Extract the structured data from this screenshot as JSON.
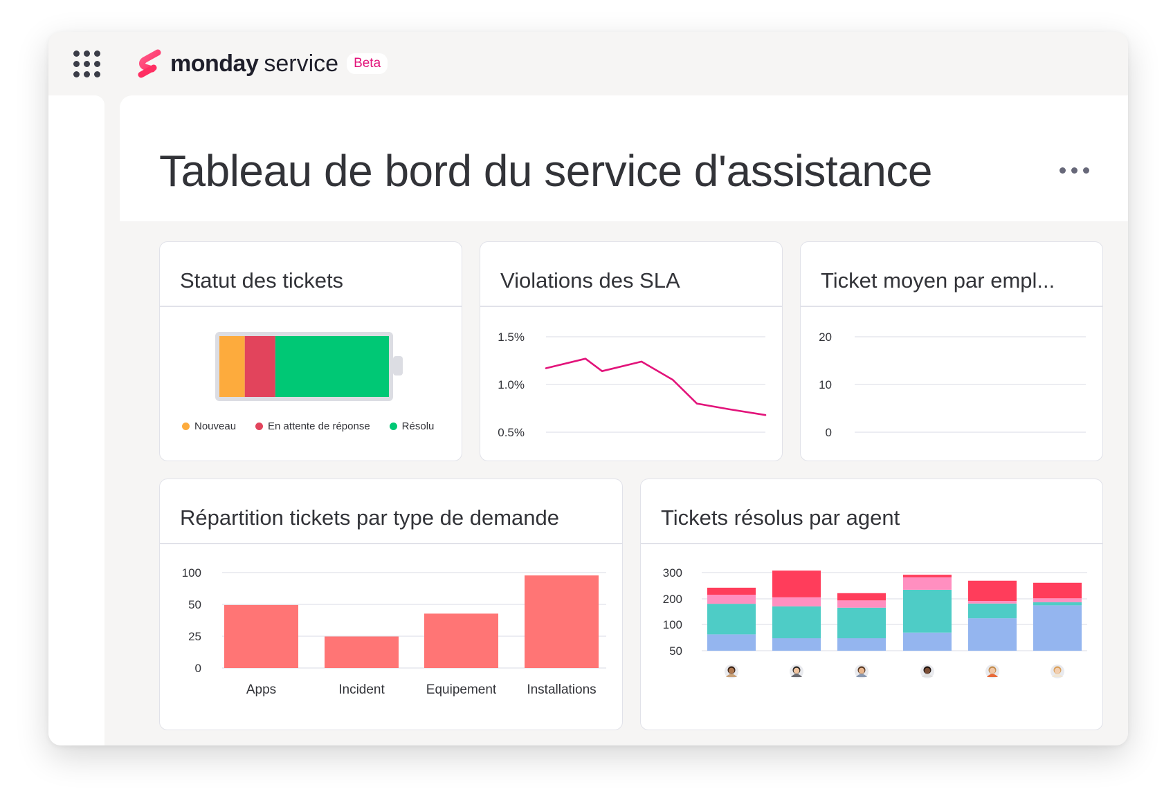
{
  "brand": {
    "name_bold": "monday",
    "name_light": "service",
    "badge": "Beta"
  },
  "page": {
    "title": "Tableau de bord du service d'assistance"
  },
  "icons": {
    "apps": "apps-grid-icon",
    "more": "more-horizontal-icon",
    "logo": "monday-service-logo"
  },
  "colors": {
    "accent": "#e2137a",
    "status_new": "#fdab3d",
    "status_waiting": "#e2445c",
    "status_resolved": "#00c875",
    "bar": "#ff7575",
    "sla_line": "#e2137a",
    "stack_blue": "#94b5ef",
    "stack_teal": "#4eccc6",
    "stack_pink": "#ff8fc0",
    "stack_red": "#ff3d5b"
  },
  "cards": {
    "status": {
      "title": "Statut des tickets"
    },
    "sla": {
      "title": "Violations des SLA"
    },
    "avg": {
      "title": "Ticket moyen par empl..."
    },
    "types": {
      "title": "Répartition tickets par type de demande"
    },
    "agents": {
      "title": "Tickets résolus par agent"
    }
  },
  "chart_data": [
    {
      "id": "ticket-status",
      "type": "bar",
      "title": "Statut des tickets",
      "orientation": "stacked-horizontal",
      "series": [
        {
          "name": "Nouveau",
          "value": 15,
          "color": "#fdab3d"
        },
        {
          "name": "En attente de réponse",
          "value": 18,
          "color": "#e2445c"
        },
        {
          "name": "Résolu",
          "value": 67,
          "color": "#00c875"
        }
      ],
      "legend": "bottom"
    },
    {
      "id": "sla-violations",
      "type": "line",
      "title": "Violations des SLA",
      "yticks": [
        "1.5%",
        "1.0%",
        "0.5%"
      ],
      "ylim": [
        0.5,
        1.5
      ],
      "x": [
        1,
        2,
        3,
        4,
        5,
        6,
        7,
        8
      ],
      "series": [
        {
          "values": [
            1.17,
            1.27,
            1.14,
            1.24,
            1.05,
            0.8,
            0.74,
            0.68
          ],
          "color": "#e2137a"
        }
      ],
      "grid": true
    },
    {
      "id": "avg-ticket-per-employee",
      "type": "line",
      "title": "Ticket moyen par empl...",
      "yticks": [
        "20",
        "10",
        "0"
      ],
      "ylim": [
        0,
        20
      ],
      "series": [],
      "grid": true
    },
    {
      "id": "tickets-by-request-type",
      "type": "bar",
      "title": "Répartition tickets par type de demande",
      "categories": [
        "Apps",
        "Incident",
        "Equipement",
        "Installations"
      ],
      "values": [
        66,
        33,
        57,
        97
      ],
      "yticks": [
        "100",
        "50",
        "25",
        "0"
      ],
      "ylim": [
        0,
        100
      ],
      "color": "#ff7575",
      "grid": true
    },
    {
      "id": "tickets-resolved-by-agent",
      "type": "bar",
      "title": "Tickets résolus par agent",
      "orientation": "stacked-vertical",
      "yticks": [
        "300",
        "200",
        "100",
        "50"
      ],
      "ylim": [
        0,
        300
      ],
      "categories": [
        "agent-1",
        "agent-2",
        "agent-3",
        "agent-4",
        "agent-5",
        "agent-6"
      ],
      "series": [
        {
          "color": "#94b5ef",
          "values": [
            63,
            48,
            48,
            70,
            125,
            175
          ]
        },
        {
          "color": "#4eccc6",
          "values": [
            118,
            123,
            118,
            165,
            57,
            12
          ]
        },
        {
          "color": "#ff8fc0",
          "values": [
            35,
            35,
            28,
            48,
            10,
            15
          ]
        },
        {
          "color": "#ff3d5b",
          "values": [
            27,
            103,
            28,
            10,
            78,
            60
          ]
        }
      ],
      "agents": [
        {
          "skin": "#b07a52",
          "hair": "#3a2418",
          "shirt": "#c9a27a"
        },
        {
          "skin": "#f0c4a0",
          "hair": "#2d2b28",
          "shirt": "#6a6a70"
        },
        {
          "skin": "#e8b68e",
          "hair": "#5a3b26",
          "shirt": "#8a98b0"
        },
        {
          "skin": "#7a4d35",
          "hair": "#1e1410",
          "shirt": "#e0e0e0"
        },
        {
          "skin": "#f1c7a6",
          "hair": "#c28c4e",
          "shirt": "#e86a3a"
        },
        {
          "skin": "#f3cfb0",
          "hair": "#d9a05c",
          "shirt": "#f0e6d6"
        }
      ],
      "grid": true
    }
  ]
}
